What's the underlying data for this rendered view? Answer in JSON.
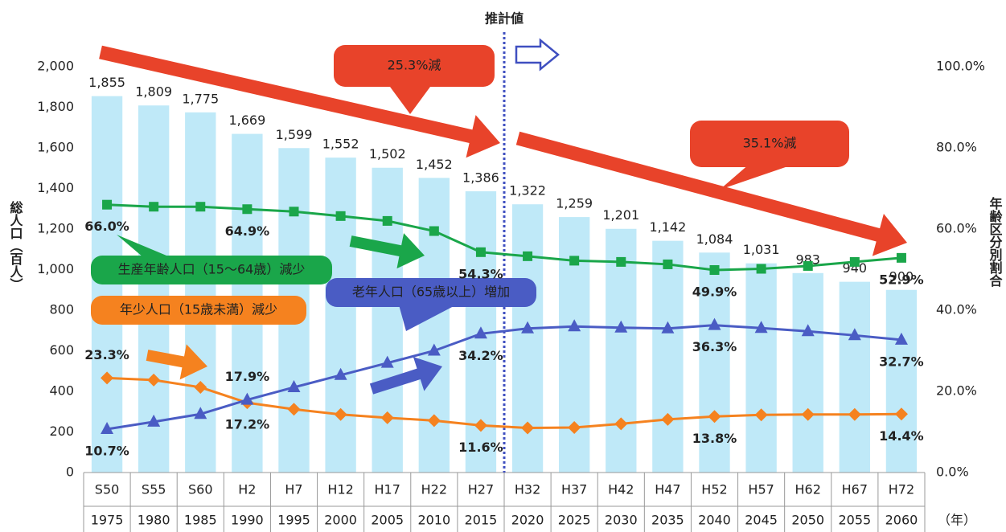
{
  "chart_data": {
    "type": "bar-line",
    "categories": [
      "S50",
      "S55",
      "S60",
      "H2",
      "H7",
      "H12",
      "H17",
      "H22",
      "H27",
      "H32",
      "H37",
      "H42",
      "H47",
      "H52",
      "H57",
      "H62",
      "H67",
      "H72"
    ],
    "years": [
      "1975",
      "1980",
      "1985",
      "1990",
      "1995",
      "2000",
      "2005",
      "2010",
      "2015",
      "2020",
      "2025",
      "2030",
      "2035",
      "2040",
      "2045",
      "2050",
      "2055",
      "2060"
    ],
    "year_unit": "（年）",
    "y_label": "総人口（百人）",
    "y2_label": "年齢区分別割合",
    "bar": {
      "color": "#bfe9f8",
      "values": [
        1855,
        1809,
        1775,
        1669,
        1599,
        1552,
        1502,
        1452,
        1386,
        1322,
        1259,
        1201,
        1142,
        1084,
        1031,
        983,
        940,
        900
      ],
      "value_labels": [
        "1,855",
        "1,809",
        "1,775",
        "1,669",
        "1,599",
        "1,552",
        "1,502",
        "1,452",
        "1,386",
        "1,322",
        "1,259",
        "1,201",
        "1,142",
        "1,084",
        "1,031",
        "983",
        "940",
        "900"
      ]
    },
    "series": [
      {
        "name": "生産年齢人口（15～64歳）減少",
        "color": "#1aa64a",
        "marker": "square",
        "axis": "y2",
        "values": [
          66.0,
          65.5,
          65.5,
          64.9,
          64.3,
          63.2,
          62.0,
          59.5,
          54.3,
          53.3,
          52.2,
          51.9,
          51.3,
          49.9,
          50.2,
          50.9,
          51.9,
          52.9
        ],
        "value_labels": [
          "66.0%",
          null,
          null,
          "64.9%",
          null,
          null,
          null,
          null,
          "54.3%",
          null,
          null,
          null,
          null,
          "49.9%",
          null,
          null,
          null,
          "52.9%"
        ]
      },
      {
        "name": "年少人口（15歳未満）減少",
        "color": "#f5821f",
        "marker": "diamond",
        "axis": "y2",
        "values": [
          23.3,
          22.8,
          21.0,
          17.2,
          15.6,
          14.3,
          13.5,
          12.8,
          11.6,
          11.0,
          11.1,
          12.0,
          13.1,
          13.8,
          14.2,
          14.3,
          14.3,
          14.4
        ],
        "value_labels": [
          "23.3%",
          null,
          null,
          "17.2%",
          null,
          null,
          null,
          null,
          "11.6%",
          null,
          null,
          null,
          null,
          "13.8%",
          null,
          null,
          null,
          "14.4%"
        ]
      },
      {
        "name": "老年人口（65歳以上）増加",
        "color": "#4a5cc4",
        "marker": "triangle",
        "axis": "y2",
        "values": [
          10.7,
          12.5,
          14.4,
          17.9,
          21.0,
          24.0,
          27.0,
          30.0,
          34.2,
          35.5,
          36.0,
          35.7,
          35.5,
          36.3,
          35.6,
          34.8,
          33.8,
          32.7
        ],
        "value_labels": [
          "10.7%",
          null,
          null,
          "17.9%",
          null,
          null,
          null,
          null,
          "34.2%",
          null,
          null,
          null,
          null,
          "36.3%",
          null,
          null,
          null,
          "32.7%"
        ]
      }
    ],
    "annotations": [
      "推計値",
      "25.3%減",
      "35.1%減"
    ],
    "ylim": [
      0,
      2000
    ],
    "yticks": [
      0,
      200,
      400,
      600,
      800,
      {
        "value": 1000,
        "label": "1,000"
      },
      {
        "value": 1200,
        "label": "1,200"
      },
      {
        "value": 1400,
        "label": "1,400"
      },
      {
        "value": 1600,
        "label": "1,600"
      },
      {
        "value": 1800,
        "label": "1,800"
      },
      {
        "value": 2000,
        "label": "2,000"
      }
    ],
    "y2lim": [
      0,
      100
    ],
    "y2ticks": [
      {
        "value": 0,
        "label": "0.0%"
      },
      {
        "value": 20,
        "label": "20.0%"
      },
      {
        "value": 40,
        "label": "40.0%"
      },
      {
        "value": 60,
        "label": "60.0%"
      },
      {
        "value": 80,
        "label": "80.0%"
      },
      {
        "value": 100,
        "label": "100.0%"
      }
    ],
    "grid": false
  }
}
